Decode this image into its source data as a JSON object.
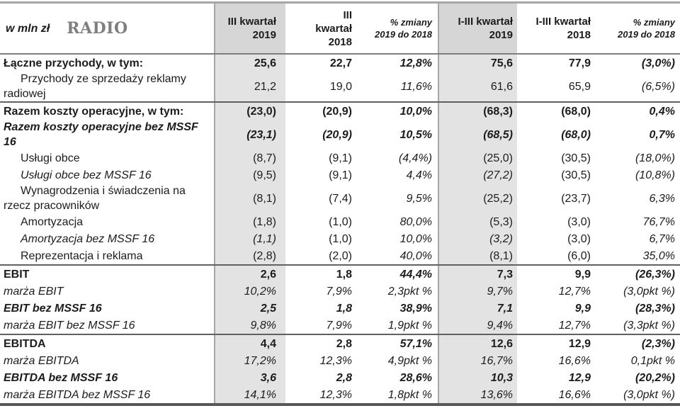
{
  "header": {
    "unit_label": "w mln zł",
    "title": "RADIO",
    "columns": [
      "III kwartał\n2019",
      "III\nkwartał\n2018",
      "% zmiany\n2019 do 2018",
      "I-III kwartał\n2019",
      "I-III kwartał\n2018",
      "% zmiany\n2019 do 2018"
    ]
  },
  "colors": {
    "shaded_column_header": "#d6d6d6",
    "shaded_column_body": "#e3e3e3",
    "title_gray": "#7f7f7f",
    "border_dark": "#575757",
    "border_gray": "#a6a6a6"
  },
  "table": {
    "rows": [
      {
        "label": "Łączne przychody, w tym:",
        "cells": [
          "25,6",
          "22,7",
          "12,8%",
          "75,6",
          "77,9",
          "(3,0%)"
        ],
        "bold": true,
        "label_italic": false,
        "indent": false,
        "italic_cells": [
          2,
          5
        ],
        "section_start": false
      },
      {
        "label": "Przychody ze sprzedaży reklamy radiowej",
        "cells": [
          "21,2",
          "19,0",
          "11,6%",
          "61,6",
          "65,9",
          "(6,5%)"
        ],
        "bold": false,
        "label_italic": false,
        "indent": true,
        "italic_cells": [
          2,
          5
        ],
        "section_start": false
      },
      {
        "label": "Razem koszty operacyjne, w tym:",
        "cells": [
          "(23,0)",
          "(20,9)",
          "10,0%",
          "(68,3)",
          "(68,0)",
          "0,4%"
        ],
        "bold": true,
        "label_italic": false,
        "indent": false,
        "italic_cells": [
          2,
          5
        ],
        "section_start": true
      },
      {
        "label": "Razem koszty operacyjne bez MSSF 16",
        "cells": [
          "(23,1)",
          "(20,9)",
          "10,5%",
          "(68,5)",
          "(68,0)",
          "0,7%"
        ],
        "bold": true,
        "label_italic": true,
        "indent": false,
        "italic_cells": [
          0,
          1,
          2,
          3,
          4,
          5
        ],
        "section_start": false
      },
      {
        "label": "Usługi obce",
        "cells": [
          "(8,7)",
          "(9,1)",
          "(4,4%)",
          "(25,0)",
          "(30,5)",
          "(18,0%)"
        ],
        "bold": false,
        "label_italic": false,
        "indent": true,
        "italic_cells": [
          2,
          5
        ],
        "section_start": false
      },
      {
        "label": "Usługi obce bez MSSF 16",
        "cells": [
          "(9,5)",
          "(9,1)",
          "4,4%",
          "(27,2)",
          "(30,5)",
          "(10,8%)"
        ],
        "bold": false,
        "label_italic": true,
        "indent": true,
        "italic_cells": [
          2,
          3,
          5
        ],
        "section_start": false
      },
      {
        "label": "Wynagrodzenia i świadczenia na rzecz pracowników",
        "cells": [
          "(8,1)",
          "(7,4)",
          "9,5%",
          "(25,2)",
          "(23,7)",
          "6,3%"
        ],
        "bold": false,
        "label_italic": false,
        "indent": true,
        "italic_cells": [
          2,
          5
        ],
        "section_start": false
      },
      {
        "label": "Amortyzacja",
        "cells": [
          "(1,8)",
          "(1,0)",
          "80,0%",
          "(5,3)",
          "(3,0)",
          "76,7%"
        ],
        "bold": false,
        "label_italic": false,
        "indent": true,
        "italic_cells": [
          2,
          5
        ],
        "section_start": false
      },
      {
        "label": "Amortyzacja bez MSSF 16",
        "cells": [
          "(1,1)",
          "(1,0)",
          "10,0%",
          "(3,2)",
          "(3,0)",
          "6,7%"
        ],
        "bold": false,
        "label_italic": true,
        "indent": true,
        "italic_cells": [
          0,
          2,
          3,
          5
        ],
        "section_start": false
      },
      {
        "label": "Reprezentacja i reklama",
        "cells": [
          "(2,8)",
          "(2,0)",
          "40,0%",
          "(8,1)",
          "(6,0)",
          "35,0%"
        ],
        "bold": false,
        "label_italic": false,
        "indent": true,
        "italic_cells": [
          2,
          5
        ],
        "section_start": false
      },
      {
        "label": "EBIT",
        "cells": [
          "2,6",
          "1,8",
          "44,4%",
          "7,3",
          "9,9",
          "(26,3%)"
        ],
        "bold": true,
        "label_italic": false,
        "indent": false,
        "italic_cells": [
          2,
          5
        ],
        "section_start": true
      },
      {
        "label": "marża EBIT",
        "cells": [
          "10,2%",
          "7,9%",
          "2,3pkt %",
          "9,7%",
          "12,7%",
          "(3,0pkt %)"
        ],
        "bold": false,
        "label_italic": true,
        "indent": false,
        "italic_cells": [
          0,
          1,
          2,
          3,
          4,
          5
        ],
        "section_start": false
      },
      {
        "label": "EBIT bez MSSF 16",
        "cells": [
          "2,5",
          "1,8",
          "38,9%",
          "7,1",
          "9,9",
          "(28,3%)"
        ],
        "bold": true,
        "label_italic": true,
        "indent": false,
        "italic_cells": [
          0,
          1,
          2,
          3,
          4,
          5
        ],
        "section_start": false
      },
      {
        "label": "marża EBIT bez MSSF 16",
        "cells": [
          "9,8%",
          "7,9%",
          "1,9pkt %",
          "9,4%",
          "12,7%",
          "(3,3pkt %)"
        ],
        "bold": false,
        "label_italic": true,
        "indent": false,
        "italic_cells": [
          0,
          1,
          2,
          3,
          4,
          5
        ],
        "section_start": false
      },
      {
        "label": "EBITDA",
        "cells": [
          "4,4",
          "2,8",
          "57,1%",
          "12,6",
          "12,9",
          "(2,3%)"
        ],
        "bold": true,
        "label_italic": false,
        "indent": false,
        "italic_cells": [
          2,
          5
        ],
        "section_start": true
      },
      {
        "label": "marża EBITDA",
        "cells": [
          "17,2%",
          "12,3%",
          "4,9pkt %",
          "16,7%",
          "16,6%",
          "0,1pkt %"
        ],
        "bold": false,
        "label_italic": true,
        "indent": false,
        "italic_cells": [
          0,
          1,
          2,
          3,
          4,
          5
        ],
        "section_start": false
      },
      {
        "label": "EBITDA bez MSSF 16",
        "cells": [
          "3,6",
          "2,8",
          "28,6%",
          "10,3",
          "12,9",
          "(20,2%)"
        ],
        "bold": true,
        "label_italic": true,
        "indent": false,
        "italic_cells": [
          0,
          1,
          2,
          3,
          4,
          5
        ],
        "section_start": false
      },
      {
        "label": "marża EBITDA bez MSSF 16",
        "cells": [
          "14,1%",
          "12,3%",
          "1,8pkt %",
          "13,6%",
          "16,6%",
          "(3,0pkt %)"
        ],
        "bold": false,
        "label_italic": true,
        "indent": false,
        "italic_cells": [
          0,
          1,
          2,
          3,
          4,
          5
        ],
        "section_start": false
      }
    ]
  }
}
